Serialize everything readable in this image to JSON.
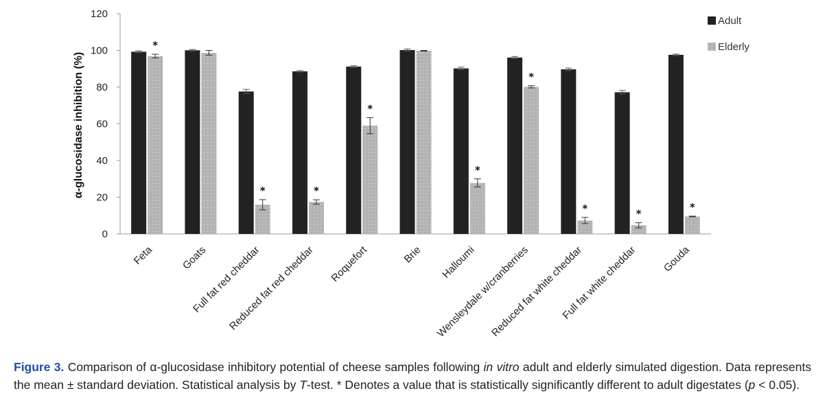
{
  "chart_data": {
    "type": "bar",
    "title": "",
    "xlabel": "",
    "ylabel": "α-glucosidase inhibition (%)",
    "ylim": [
      0,
      120
    ],
    "yticks": [
      0,
      20,
      40,
      60,
      80,
      100,
      120
    ],
    "grid": false,
    "legend_position": "top-right",
    "categories": [
      "Feta",
      "Goats",
      "Full fat red cheddar",
      "Reduced fat red cheddar",
      "Roquefort",
      "Brie",
      "Halloumi",
      "Wensleydale w/cranberries",
      "Reduced fat white cheddar",
      "Full fat white cheddar",
      "Gouda"
    ],
    "series": [
      {
        "name": "Adult",
        "color": "#222222",
        "values": [
          99.3,
          100.1,
          77.6,
          88.6,
          91.2,
          100.2,
          90.2,
          96.1,
          89.7,
          77.2,
          97.6
        ],
        "errors": [
          0.5,
          0.4,
          1.2,
          0.4,
          0.5,
          0.6,
          0.7,
          0.6,
          0.7,
          1.0,
          0.4
        ],
        "significant": [
          false,
          false,
          false,
          false,
          false,
          false,
          false,
          false,
          false,
          false,
          false
        ]
      },
      {
        "name": "Elderly",
        "color": "#b3b3b3",
        "values": [
          96.9,
          98.7,
          15.9,
          17.4,
          59.0,
          99.8,
          27.8,
          80.2,
          7.3,
          4.7,
          9.5
        ],
        "errors": [
          1.0,
          1.3,
          2.8,
          1.2,
          4.4,
          0.2,
          2.2,
          0.6,
          1.7,
          1.4,
          0.2
        ],
        "significant": [
          true,
          false,
          true,
          true,
          true,
          false,
          true,
          true,
          true,
          true,
          true
        ]
      }
    ],
    "significance_marker": "*"
  },
  "caption": {
    "label": "Figure 3.",
    "text_before_italic": " Comparison of α-glucosidase inhibitory potential of cheese samples following ",
    "italic_phrase": "in vitro",
    "text_after_italic": " adult and elderly simulated digestion. Data represents the mean ± standard deviation. Statistical analysis by ",
    "italic_t": "T",
    "text_after_t": "-test. * Denotes a value that is statistically significantly different to adult digestates (",
    "italic_p": "p",
    "text_end": " < 0.05)."
  }
}
